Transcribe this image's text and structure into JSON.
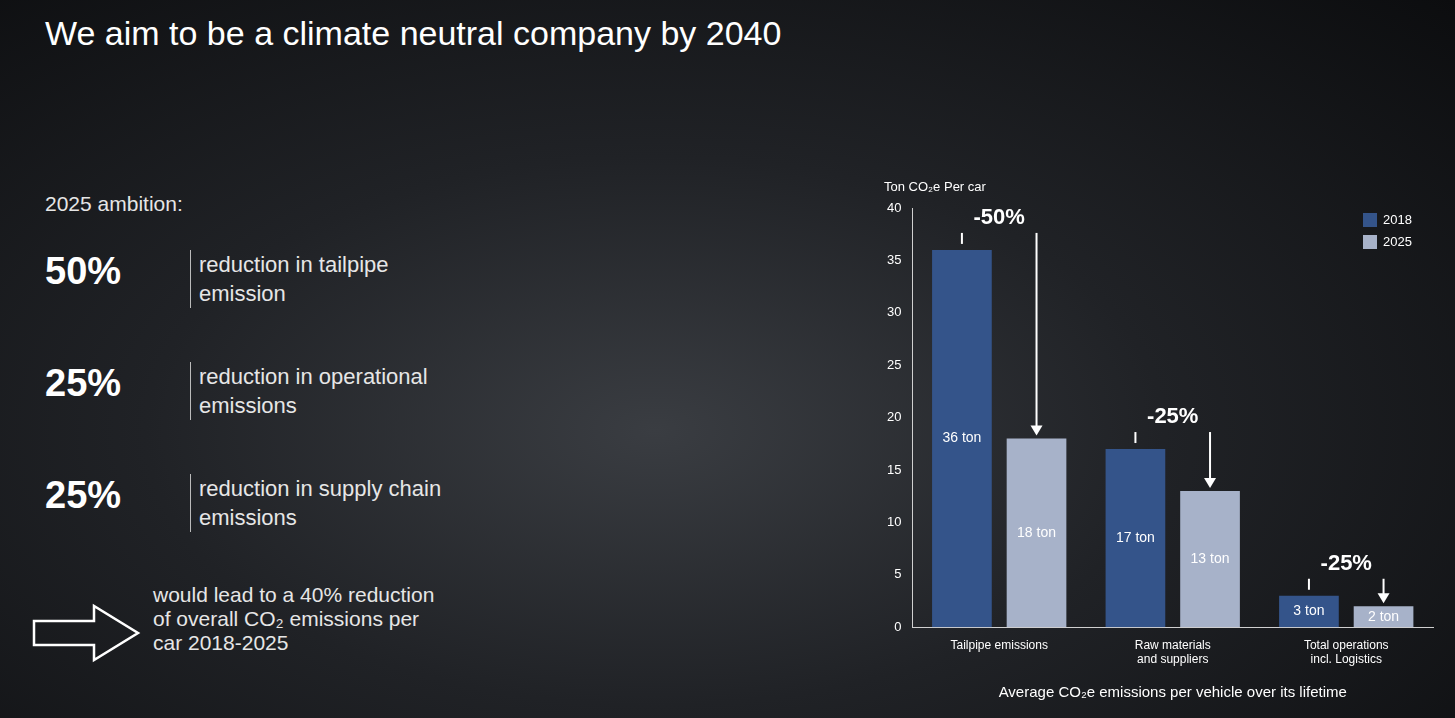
{
  "title": "We aim to be a climate neutral company by 2040",
  "ambition": {
    "heading": "2025 ambition:",
    "items": [
      {
        "figure": "50%",
        "text": "reduction in tailpipe emission"
      },
      {
        "figure": "25%",
        "text": "reduction in operational emissions"
      },
      {
        "figure": "25%",
        "text": "reduction in supply chain emissions"
      }
    ],
    "conclusion": "would lead to a 40% reduction of overall CO₂ emissions per car 2018-2025"
  },
  "chart_data": {
    "type": "bar",
    "y_label": "Ton CO₂e Per car",
    "x_label": "Average CO₂e emissions per vehicle over its lifetime",
    "categories": [
      "Tailpipe emissions",
      "Raw materials and suppliers",
      "Total operations incl. Logistics"
    ],
    "series": [
      {
        "name": "2018",
        "color": "#34548a",
        "values": [
          36,
          17,
          3
        ],
        "value_labels": [
          "36 ton",
          "17 ton",
          "3 ton"
        ]
      },
      {
        "name": "2025",
        "color": "#a7b2c9",
        "values": [
          18,
          13,
          2
        ],
        "value_labels": [
          "18 ton",
          "13 ton",
          "2 ton"
        ]
      }
    ],
    "annotations": [
      "-50%",
      "-25%",
      "-25%"
    ],
    "ylim": [
      0,
      40
    ],
    "yticks": [
      0,
      5,
      10,
      15,
      20,
      25,
      30,
      35,
      40
    ],
    "grid": false,
    "legend": "top-right",
    "data_labels": true
  }
}
